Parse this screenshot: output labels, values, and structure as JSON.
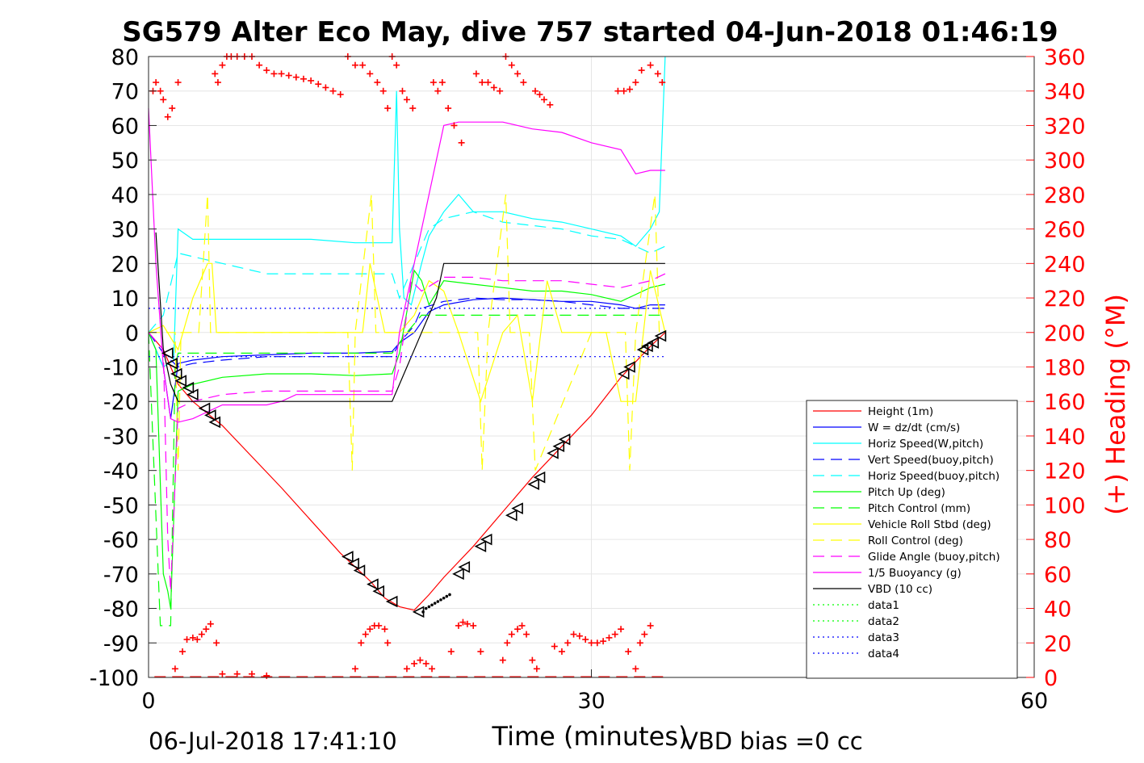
{
  "chart_data": {
    "type": "line",
    "title": "SG579 Alter Eco May, dive 757 started 04-Jun-2018 01:46:19",
    "xlabel": "Time (minutes)",
    "ylabel_right": "(+) Heading (°M)",
    "xlim": [
      0,
      60
    ],
    "ylim": [
      -100,
      80
    ],
    "ylim_right": [
      0,
      360
    ],
    "x_ticks": [
      "0",
      "30",
      "60"
    ],
    "y_ticks": [
      "80",
      "70",
      "60",
      "50",
      "40",
      "30",
      "20",
      "10",
      "0",
      "-10",
      "-20",
      "-30",
      "-40",
      "-50",
      "-60",
      "-70",
      "-80",
      "-90",
      "-100"
    ],
    "y_right_ticks": [
      "360",
      "340",
      "320",
      "300",
      "280",
      "260",
      "240",
      "220",
      "200",
      "180",
      "160",
      "140",
      "120",
      "100",
      "80",
      "60",
      "40",
      "20",
      "0"
    ],
    "grid": true,
    "legend_position": "lower-right",
    "footer_left": "06-Jul-2018 17:41:10",
    "footer_right": "VBD bias =0 cc",
    "colors": {
      "heading": "#ff0000",
      "right_axis": "#ff0000",
      "grid": "#e6e6e6"
    },
    "series": [
      {
        "name": "Height (1m)",
        "color": "#ff0000",
        "style": "solid",
        "x": [
          0,
          1,
          2,
          3,
          5,
          9,
          13,
          15,
          16,
          17,
          18,
          19,
          20,
          22,
          24,
          26,
          28,
          30,
          32,
          34,
          35
        ],
        "y": [
          0,
          -5,
          -15,
          -20,
          -27,
          -45,
          -64,
          -72,
          -77,
          -79.5,
          -80.5,
          -76,
          -71,
          -62,
          -52,
          -42,
          -33,
          -24,
          -13,
          -4,
          0
        ]
      },
      {
        "name": "W = dz/dt (cm/s)",
        "color": "#0000ff",
        "style": "solid",
        "x": [
          0,
          1,
          1.5,
          2,
          3,
          5,
          8,
          11,
          14,
          16.5,
          17,
          18,
          18.5,
          19,
          20,
          22,
          24,
          26,
          28,
          30,
          32,
          33,
          34,
          35
        ],
        "y": [
          0,
          -10,
          -25,
          -9,
          -8,
          -7,
          -6.5,
          -6,
          -6,
          -5.5,
          -3,
          0,
          3,
          6,
          8,
          9.5,
          10,
          9.5,
          9,
          9,
          8,
          7,
          8,
          8
        ]
      },
      {
        "name": "Horiz Speed(W,pitch)",
        "color": "#00ffff",
        "style": "solid",
        "x": [
          0,
          1,
          1.7,
          2,
          3,
          5,
          8,
          11,
          14,
          16.5,
          16.8,
          17,
          17.3,
          17.8,
          18.5,
          19,
          20,
          21,
          22,
          24,
          26,
          28,
          30,
          32,
          33,
          34,
          34.6,
          35
        ],
        "y": [
          0,
          -10,
          -8,
          30,
          27,
          27,
          27,
          27,
          26,
          26,
          70,
          30,
          10,
          8,
          20,
          28,
          35,
          40,
          35,
          35,
          33,
          32,
          30,
          28,
          25,
          30,
          35,
          80
        ]
      },
      {
        "name": "Vert Speed(buoy,pitch)",
        "color": "#0000ff",
        "style": "dashed",
        "x": [
          0,
          1,
          2,
          3,
          5,
          8,
          11,
          14,
          16.5,
          17,
          18,
          18.5,
          20,
          22,
          24,
          26,
          28,
          30,
          32,
          34,
          35
        ],
        "y": [
          0,
          -6,
          -10,
          -9,
          -8,
          -7,
          -7,
          -7,
          -7,
          -3,
          2,
          7,
          9,
          10,
          9.5,
          9.5,
          9,
          8,
          7,
          7,
          7
        ]
      },
      {
        "name": "Horiz Speed(buoy,pitch)",
        "color": "#00ffff",
        "style": "dashed",
        "x": [
          0,
          1,
          2,
          3,
          5,
          8,
          11,
          14,
          16.5,
          17,
          18,
          19,
          20,
          22,
          24,
          26,
          28,
          30,
          32,
          34,
          35
        ],
        "y": [
          0,
          5,
          23,
          22,
          20,
          17,
          17,
          17,
          17,
          10,
          20,
          30,
          33,
          35,
          32,
          31,
          30,
          28,
          27,
          23,
          25
        ]
      },
      {
        "name": "Pitch Up (deg)",
        "color": "#00ff00",
        "style": "solid",
        "x": [
          0,
          0.5,
          1,
          1.3,
          1.5,
          2,
          3,
          5,
          8,
          11,
          14,
          16.5,
          17,
          18,
          18.5,
          19,
          20,
          22,
          24,
          26,
          28,
          30,
          32,
          34,
          35
        ],
        "y": [
          0,
          -5,
          -70,
          -75,
          -80,
          -17,
          -15,
          -13,
          -12,
          -12,
          -12.5,
          -12,
          -6,
          18,
          15,
          8,
          15,
          14,
          13,
          12,
          12,
          11,
          9,
          13,
          14
        ]
      },
      {
        "name": "Pitch Control (mm)",
        "color": "#00ff00",
        "style": "dashed",
        "x": [
          0,
          0.8,
          1.2,
          1.5,
          1.8,
          2,
          5,
          10,
          16.5,
          17.5,
          18.5,
          20,
          25,
          30,
          35
        ],
        "y": [
          0,
          -85,
          -85,
          -85,
          -10,
          -6,
          -6,
          -6,
          -6,
          0,
          5,
          5,
          5,
          5,
          5
        ]
      },
      {
        "name": "Vehicle Roll Stbd (deg)",
        "color": "#ffff00",
        "style": "solid",
        "x": [
          0,
          1,
          2,
          3,
          4,
          4.3,
          4.6,
          5,
          8,
          13,
          14.5,
          15,
          16,
          17,
          18,
          19,
          20,
          21,
          22.5,
          24,
          25,
          26,
          27,
          28,
          30,
          31,
          32,
          33,
          34,
          35
        ],
        "y": [
          0,
          2,
          -5,
          10,
          20,
          20,
          0,
          0,
          0,
          0,
          0,
          20,
          0,
          0,
          5,
          15,
          12,
          0,
          -20,
          0,
          5,
          -20,
          15,
          0,
          0,
          0,
          -20,
          -20,
          18,
          0
        ]
      },
      {
        "name": "Roll Control (deg)",
        "color": "#ffff00",
        "style": "dashed",
        "x": [
          0,
          1.8,
          2,
          2.2,
          2.4,
          3.4,
          4,
          4.2,
          5,
          13.5,
          13.8,
          14,
          15.1,
          15.4,
          16,
          17,
          20,
          22.3,
          22.6,
          23,
          24.2,
          24.5,
          25,
          25.8,
          26.2,
          30,
          32.3,
          32.6,
          33,
          34.3,
          34.6,
          35
        ],
        "y": [
          0,
          0,
          -40,
          0,
          0,
          0,
          40,
          0,
          0,
          0,
          -40,
          0,
          40,
          0,
          0,
          0,
          0,
          0,
          -40,
          0,
          40,
          0,
          0,
          0,
          -40,
          0,
          0,
          -40,
          0,
          40,
          0,
          0
        ]
      },
      {
        "name": "Glide Angle (buoy,pitch)",
        "color": "#ff00ff",
        "style": "dashed",
        "x": [
          0,
          1,
          1.3,
          1.5,
          2,
          3,
          5,
          8,
          11,
          14,
          16.5,
          17,
          17.8,
          18.5,
          20,
          22,
          24,
          26,
          28,
          30,
          32,
          34,
          35
        ],
        "y": [
          0,
          -5,
          -60,
          -75,
          -22,
          -20,
          -18,
          -17,
          -17,
          -17,
          -17,
          -10,
          15,
          12,
          16,
          16,
          15,
          15,
          15,
          14,
          13,
          15,
          17
        ]
      },
      {
        "name": "1/5 Buoyancy (g)",
        "color": "#ff00ff",
        "style": "solid",
        "x": [
          0,
          0.5,
          1,
          1.5,
          2,
          3,
          4,
          5,
          8,
          9,
          10,
          14,
          16.5,
          17,
          18,
          19,
          20,
          21,
          24,
          25,
          26,
          28,
          30,
          32,
          33,
          34,
          35
        ],
        "y": [
          65,
          20,
          -10,
          -25,
          -26,
          -25,
          -23,
          -21,
          -21,
          -20,
          -18,
          -18,
          -18,
          0,
          20,
          40,
          60,
          61,
          61,
          60,
          59,
          58,
          55,
          53,
          46,
          47,
          47
        ]
      },
      {
        "name": "VBD (10 cc)",
        "color": "#000000",
        "style": "solid",
        "x": [
          0.5,
          1,
          1.5,
          2,
          5,
          10,
          15,
          16.5,
          17.5,
          18.5,
          19.5,
          20,
          25,
          30,
          35
        ],
        "y": [
          29,
          -5,
          -15,
          -20,
          -20,
          -20,
          -20,
          -20,
          -10,
          0,
          10,
          20,
          20,
          20,
          20
        ]
      },
      {
        "name": "data1",
        "color": "#00ff00",
        "style": "dotted",
        "x": [],
        "y": []
      },
      {
        "name": "data2",
        "color": "#00ff00",
        "style": "dotted",
        "x": [],
        "y": []
      },
      {
        "name": "data3",
        "color": "#0000ff",
        "style": "dotted",
        "x": [
          0,
          35
        ],
        "y": [
          7,
          7
        ]
      },
      {
        "name": "data4",
        "color": "#0000ff",
        "style": "dotted",
        "x": [
          0,
          35
        ],
        "y": [
          -7,
          -7
        ]
      }
    ],
    "heading_markers": {
      "x": [
        0.3,
        0.5,
        0.8,
        1.0,
        1.3,
        1.6,
        2.0,
        4.5,
        4.7,
        5.0,
        5.3,
        5.6,
        6.0,
        6.5,
        7.0,
        7.5,
        8.0,
        8.5,
        9.0,
        9.5,
        10.0,
        10.5,
        11.0,
        11.5,
        12.0,
        12.5,
        13.0,
        13.5,
        14.0,
        14.5,
        15.0,
        15.5,
        15.9,
        16.2,
        16.5,
        16.8,
        17.2,
        17.5,
        17.9,
        19.3,
        19.6,
        19.9,
        20.3,
        20.7,
        21.2,
        22.2,
        22.6,
        23.0,
        23.4,
        23.8,
        24.2,
        24.6,
        25.0,
        25.4,
        26.2,
        26.5,
        26.8,
        27.2,
        31.8,
        32.2,
        32.6,
        33.0,
        33.4,
        34.0,
        34.5,
        34.8
      ],
      "y": [
        340,
        345,
        340,
        335,
        325,
        330,
        345,
        350,
        345,
        355,
        360,
        360,
        360,
        360,
        360,
        355,
        352,
        350,
        350,
        349,
        348,
        347,
        346,
        344,
        342,
        340,
        338,
        360,
        355,
        355,
        350,
        345,
        340,
        330,
        360,
        355,
        340,
        335,
        330,
        345,
        340,
        345,
        330,
        320,
        310,
        350,
        345,
        345,
        342,
        340,
        360,
        355,
        350,
        345,
        340,
        338,
        335,
        332,
        340,
        340,
        341,
        345,
        352,
        355,
        350,
        345
      ]
    },
    "heading_markers_low": {
      "x": [
        1.8,
        2.3,
        2.6,
        3.0,
        3.3,
        3.6,
        3.9,
        4.2,
        4.6,
        5.0,
        6.0,
        7.0,
        8.0,
        14.0,
        14.4,
        14.7,
        15.0,
        15.3,
        15.6,
        16.0,
        16.2,
        17.5,
        18.0,
        18.4,
        18.8,
        19.2,
        20.5,
        21.0,
        21.3,
        21.6,
        22.0,
        22.5,
        24.0,
        24.3,
        24.6,
        25.0,
        25.3,
        25.6,
        26.0,
        26.3,
        27.5,
        28.0,
        28.4,
        28.8,
        29.2,
        29.6,
        30.0,
        30.4,
        30.8,
        31.2,
        31.6,
        32.0,
        32.5,
        33.0,
        33.3,
        33.6,
        34.0
      ],
      "y": [
        5,
        15,
        22,
        23,
        22,
        25,
        28,
        31,
        20,
        2,
        2,
        2,
        1,
        5,
        20,
        25,
        28,
        30,
        30,
        28,
        20,
        5,
        8,
        10,
        8,
        5,
        15,
        30,
        32,
        31,
        30,
        15,
        10,
        20,
        25,
        28,
        30,
        25,
        10,
        5,
        18,
        15,
        20,
        25,
        24,
        22,
        20,
        20,
        21,
        23,
        25,
        28,
        15,
        5,
        20,
        25,
        30
      ]
    },
    "triangle_markers": {
      "x": [
        1.3,
        1.6,
        1.9,
        2.2,
        2.7,
        3.0,
        3.8,
        4.2,
        4.5,
        13.5,
        13.9,
        14.3,
        15.2,
        15.6,
        16.5,
        18.3,
        21.0,
        21.4,
        22.5,
        22.9,
        24.6,
        25.0,
        26.1,
        26.5,
        27.4,
        27.8,
        28.2,
        32.2,
        32.6,
        33.5,
        33.8,
        34.2,
        34.7
      ],
      "y": [
        -6,
        -9,
        -12,
        -14,
        -16,
        -18,
        -22,
        -24,
        -26,
        -65,
        -67,
        -69,
        -73,
        -75,
        -78,
        -81,
        -70,
        -68,
        -62,
        -60,
        -53,
        -51,
        -44,
        -42,
        -35,
        -33,
        -31,
        -12,
        -10,
        -5,
        -4,
        -3,
        -1
      ]
    },
    "dot_markers": {
      "x": [
        18.6,
        18.8,
        19.0,
        19.2,
        19.4,
        19.6,
        19.8,
        20.0,
        20.2,
        20.4
      ],
      "y": [
        -81,
        -80,
        -79.5,
        -79,
        -78.5,
        -78,
        -77.5,
        -77,
        -76.5,
        -76
      ]
    },
    "height_floor": {
      "x": [
        0.4,
        35
      ],
      "y": [
        -99.8,
        -99.8
      ],
      "color": "#ff0000",
      "style": "dashed"
    }
  }
}
